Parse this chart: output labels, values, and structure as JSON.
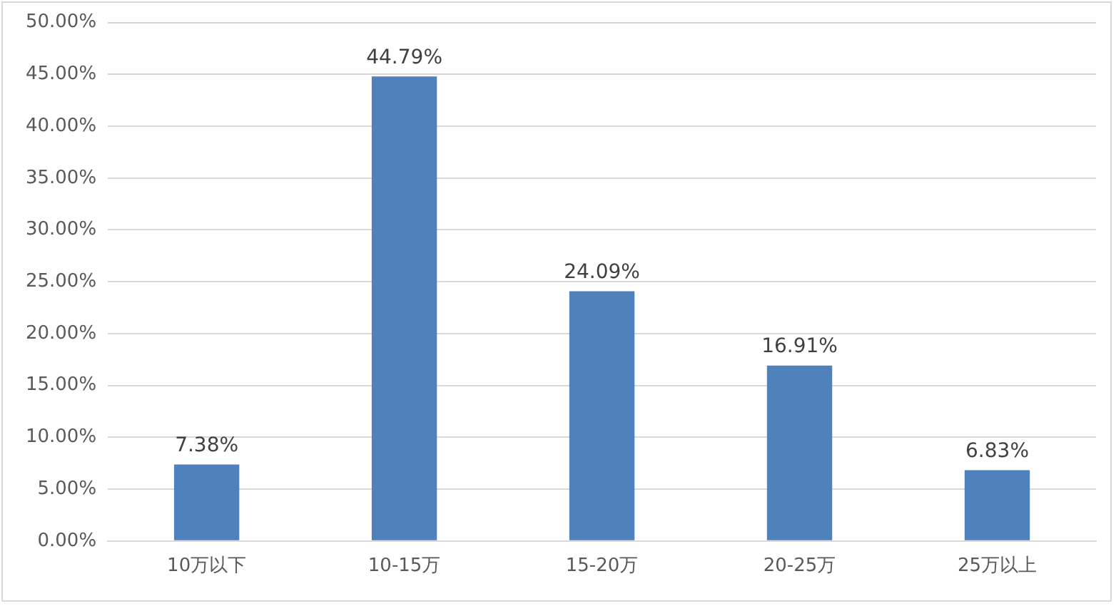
{
  "chart_data": {
    "type": "bar",
    "categories": [
      "10万以下",
      "10-15万",
      "15-20万",
      "20-25万",
      "25万以上"
    ],
    "values": [
      7.38,
      44.79,
      24.09,
      16.91,
      6.83
    ],
    "value_labels": [
      "7.38%",
      "44.79%",
      "24.09%",
      "16.91%",
      "6.83%"
    ],
    "color": "#4f81bd",
    "ylim": [
      0,
      50
    ],
    "yticks": [
      {
        "value": 0,
        "label": "0.00%"
      },
      {
        "value": 5,
        "label": "5.00%"
      },
      {
        "value": 10,
        "label": "10.00%"
      },
      {
        "value": 15,
        "label": "15.00%"
      },
      {
        "value": 20,
        "label": "20.00%"
      },
      {
        "value": 25,
        "label": "25.00%"
      },
      {
        "value": 30,
        "label": "30.00%"
      },
      {
        "value": 35,
        "label": "35.00%"
      },
      {
        "value": 40,
        "label": "40.00%"
      },
      {
        "value": 45,
        "label": "45.00%"
      },
      {
        "value": 50,
        "label": "50.00%"
      }
    ],
    "grid": "y",
    "legend": false
  }
}
